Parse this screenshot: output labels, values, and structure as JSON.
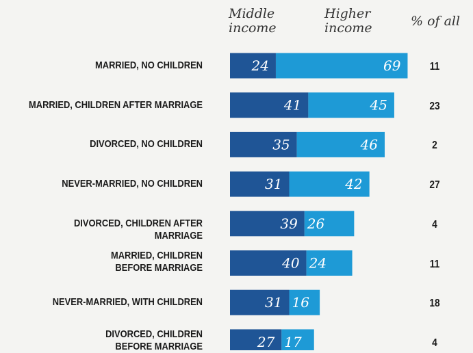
{
  "chart_data": {
    "type": "bar",
    "stacked": true,
    "orientation": "horizontal",
    "headers": {
      "middle": [
        "Middle",
        "income"
      ],
      "higher": [
        "Higher",
        "income"
      ],
      "share": "% of all"
    },
    "categories": [
      "MARRIED, NO CHILDREN",
      "MARRIED, CHILDREN AFTER MARRIAGE",
      "DIVORCED, NO CHILDREN",
      "NEVER-MARRIED, NO CHILDREN",
      "DIVORCED, CHILDREN AFTER MARRIAGE",
      "MARRIED, CHILDREN\nBEFORE MARRIAGE",
      "NEVER-MARRIED, WITH CHILDREN",
      "DIVORCED, CHILDREN\nBEFORE MARRIAGE"
    ],
    "series": [
      {
        "values": [
          24,
          41,
          35,
          31,
          39,
          40,
          31,
          27
        ]
      },
      {
        "values": [
          69,
          45,
          46,
          42,
          26,
          24,
          16,
          17
        ]
      }
    ],
    "percent_of_all": [
      "11",
      "23",
      "2",
      "27",
      "4",
      "11",
      "18",
      "4"
    ],
    "colors": {
      "middle": "#1f5596",
      "higher": "#1e9ad6"
    }
  }
}
